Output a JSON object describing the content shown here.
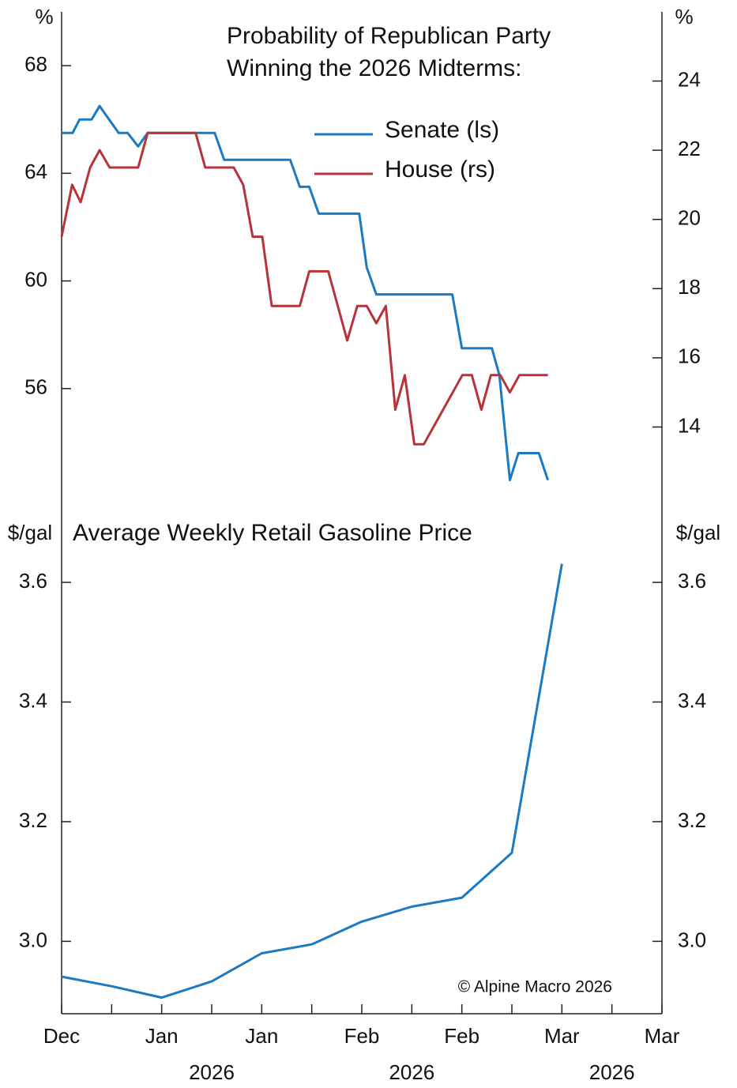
{
  "chart_data": [
    {
      "type": "line",
      "title": [
        "Probability of Republican Party",
        "Winning the 2026 Midterms:"
      ],
      "y_unit": "%",
      "y2_unit": "%",
      "xlim": [
        0,
        12
      ],
      "ylim": [
        52,
        70
      ],
      "yticks": [
        56,
        60,
        64,
        68
      ],
      "y2lim": [
        12,
        26
      ],
      "y2ticks": [
        14,
        16,
        18,
        20,
        22,
        24
      ],
      "series": [
        {
          "name": "Senate (ls)",
          "color": "#1a7ac4",
          "axis": "y",
          "x": [
            0,
            0.22,
            0.36,
            0.6,
            0.76,
            1.14,
            1.32,
            1.53,
            1.72,
            3.06,
            3.25,
            4.57,
            4.76,
            4.95,
            5.14,
            5.95,
            6.1,
            6.29,
            7.81,
            8.0,
            8.6,
            8.75,
            8.96,
            9.13,
            9.54,
            9.72
          ],
          "values": [
            65.5,
            65.5,
            66,
            66,
            66.5,
            65.5,
            65.5,
            65,
            65.5,
            65.5,
            64.5,
            64.5,
            63.5,
            63.5,
            62.5,
            62.5,
            60.5,
            59.5,
            59.5,
            57.5,
            57.5,
            56.5,
            52.6,
            53.6,
            53.6,
            52.6
          ]
        },
        {
          "name": "House (rs)",
          "color": "#b8323a",
          "axis": "y2",
          "x": [
            0,
            0.21,
            0.38,
            0.57,
            0.76,
            0.96,
            1.53,
            1.72,
            2.68,
            2.87,
            3.44,
            3.63,
            3.82,
            4.01,
            4.2,
            4.76,
            4.95,
            5.33,
            5.71,
            5.91,
            6.1,
            6.29,
            6.48,
            6.67,
            6.86,
            7.05,
            7.24,
            8.01,
            8.2,
            8.39,
            8.58,
            8.77,
            8.96,
            9.15,
            9.72
          ],
          "values": [
            19.5,
            21,
            20.5,
            21.5,
            22,
            21.5,
            21.5,
            22.5,
            22.5,
            21.5,
            21.5,
            21,
            19.5,
            19.5,
            17.5,
            17.5,
            18.5,
            18.5,
            16.5,
            17.5,
            17.5,
            17,
            17.5,
            14.5,
            15.5,
            13.5,
            13.5,
            15.5,
            15.5,
            14.5,
            15.5,
            15.5,
            15,
            15.5,
            15.5
          ]
        }
      ]
    },
    {
      "type": "line",
      "title": "Average Weekly Retail Gasoline Price",
      "y_unit": "$/gal",
      "y2_unit": "$/gal",
      "annotation": "© Alpine Macro 2026",
      "xlim": [
        0,
        12
      ],
      "xticks": [
        {
          "value": 0,
          "label": "Dec"
        },
        {
          "value": 2,
          "label": "Jan"
        },
        {
          "value": 4,
          "label": "Jan"
        },
        {
          "value": 6,
          "label": "Feb"
        },
        {
          "value": 8,
          "label": "Feb"
        },
        {
          "value": 10,
          "label": "Mar"
        },
        {
          "value": 12,
          "label": "Mar"
        }
      ],
      "xminor": [
        1,
        3,
        5,
        7,
        9,
        11
      ],
      "xsublabels": [
        {
          "value": 3,
          "label": "2026"
        },
        {
          "value": 7,
          "label": "2026"
        },
        {
          "value": 11,
          "label": "2026"
        }
      ],
      "ylim": [
        2.879,
        3.744
      ],
      "yticks": [
        {
          "value": 3,
          "label": "3.0"
        },
        3.2,
        3.4,
        3.6
      ],
      "y2lim": [
        2.879,
        3.744
      ],
      "y2ticks": [
        {
          "value": 3,
          "label": "3.0"
        },
        3.2,
        3.4,
        3.6
      ],
      "series": [
        {
          "name": "Gasoline",
          "color": "#1a7ac4",
          "axis": "y",
          "x": [
            0,
            1,
            2,
            3,
            4,
            5,
            6,
            7,
            8,
            9,
            10
          ],
          "values": [
            2.941,
            2.925,
            2.906,
            2.933,
            2.98,
            2.995,
            3.033,
            3.058,
            3.073,
            3.148,
            3.631
          ]
        }
      ]
    }
  ]
}
